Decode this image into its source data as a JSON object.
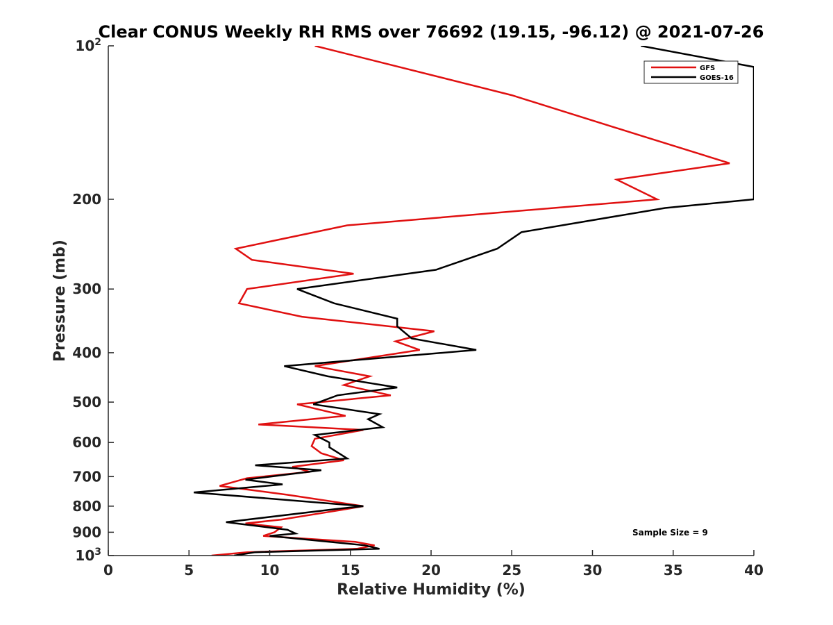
{
  "chart_data": {
    "type": "line",
    "title": "Clear CONUS Weekly RH RMS over 76692 (19.15, -96.12) @ 2021-07-26",
    "xlabel": "Relative Humidity (%)",
    "ylabel": "Pressure (mb)",
    "xlim": [
      0,
      40
    ],
    "ylim": [
      100,
      1000
    ],
    "yscale": "log",
    "y_reversed": true,
    "grid": false,
    "legend_position": "top-right",
    "x_ticks": [
      0,
      5,
      10,
      15,
      20,
      25,
      30,
      35,
      40
    ],
    "x_tick_labels": [
      "0",
      "5",
      "10",
      "15",
      "20",
      "25",
      "30",
      "35",
      "40"
    ],
    "y_ticks": [
      100,
      200,
      300,
      400,
      500,
      600,
      700,
      800,
      900,
      1000
    ],
    "y_tick_labels": [
      {
        "base": "10",
        "exp": "2"
      },
      {
        "base": "200"
      },
      {
        "base": "300"
      },
      {
        "base": "400"
      },
      {
        "base": "500"
      },
      {
        "base": "600"
      },
      {
        "base": "700"
      },
      {
        "base": "800"
      },
      {
        "base": "900"
      },
      {
        "base": "10",
        "exp": "3"
      }
    ],
    "annotation": "Sample Size = 9",
    "series": [
      {
        "name": "GFS",
        "color": "#e01010",
        "points": [
          [
            12.8,
            100
          ],
          [
            25,
            125
          ],
          [
            33,
            150
          ],
          [
            38.5,
            170
          ],
          [
            31.5,
            183
          ],
          [
            34,
            200
          ],
          [
            14.8,
            225
          ],
          [
            7.9,
            250
          ],
          [
            8.9,
            263
          ],
          [
            15.2,
            280
          ],
          [
            8.6,
            300
          ],
          [
            8.1,
            320
          ],
          [
            12,
            340
          ],
          [
            20.2,
            363
          ],
          [
            17.8,
            380
          ],
          [
            19.3,
            395
          ],
          [
            12.8,
            425
          ],
          [
            16.2,
            445
          ],
          [
            14.6,
            463
          ],
          [
            17.5,
            485
          ],
          [
            11.7,
            505
          ],
          [
            14.7,
            532
          ],
          [
            9.3,
            553
          ],
          [
            15.8,
            567
          ],
          [
            12.8,
            590
          ],
          [
            12.6,
            610
          ],
          [
            13.2,
            630
          ],
          [
            14.6,
            650
          ],
          [
            11.4,
            670
          ],
          [
            12.5,
            685
          ],
          [
            8.6,
            705
          ],
          [
            6.9,
            730
          ],
          [
            11.1,
            760
          ],
          [
            15.8,
            800
          ],
          [
            14.3,
            815
          ],
          [
            10.7,
            850
          ],
          [
            8.5,
            865
          ],
          [
            10.7,
            880
          ],
          [
            10.3,
            900
          ],
          [
            9.6,
            915
          ],
          [
            15.3,
            940
          ],
          [
            16.5,
            955
          ],
          [
            15.4,
            970
          ],
          [
            8.6,
            985
          ],
          [
            6.4,
            1000
          ]
        ]
      },
      {
        "name": "GOES-16",
        "color": "#000000",
        "points": [
          [
            33,
            100
          ],
          [
            40,
            110
          ],
          [
            40,
            200
          ],
          [
            34.5,
            208
          ],
          [
            25.6,
            232
          ],
          [
            24.1,
            250
          ],
          [
            20.3,
            275
          ],
          [
            11.7,
            300
          ],
          [
            14,
            320
          ],
          [
            17.9,
            343
          ],
          [
            17.9,
            355
          ],
          [
            18.8,
            375
          ],
          [
            22.8,
            395
          ],
          [
            10.9,
            425
          ],
          [
            13.6,
            445
          ],
          [
            17.9,
            468
          ],
          [
            14.2,
            485
          ],
          [
            12.7,
            505
          ],
          [
            16.8,
            528
          ],
          [
            16.1,
            540
          ],
          [
            17,
            560
          ],
          [
            12.8,
            580
          ],
          [
            13.7,
            600
          ],
          [
            13.7,
            613
          ],
          [
            14.8,
            645
          ],
          [
            9.1,
            665
          ],
          [
            13.2,
            680
          ],
          [
            8.5,
            710
          ],
          [
            10.8,
            725
          ],
          [
            5.3,
            752
          ],
          [
            15.8,
            800
          ],
          [
            14.2,
            810
          ],
          [
            7.3,
            860
          ],
          [
            11.1,
            890
          ],
          [
            11.6,
            905
          ],
          [
            10,
            915
          ],
          [
            15.9,
            955
          ],
          [
            16.8,
            970
          ],
          [
            9.1,
            985
          ],
          [
            7.8,
            1000
          ]
        ]
      }
    ]
  }
}
